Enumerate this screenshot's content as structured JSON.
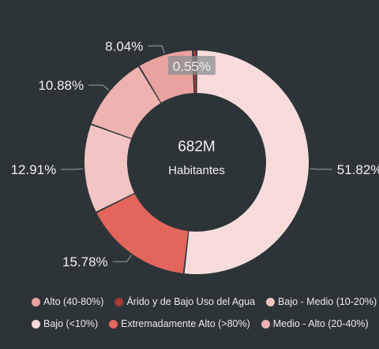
{
  "chart_data": {
    "type": "pie",
    "variant": "donut",
    "center_value": "682M",
    "center_label": "Habitantes",
    "slices": [
      {
        "name": "Bajo (<10%)",
        "value": 51.82,
        "label": "51.82%",
        "color": "#f8dcdb"
      },
      {
        "name": "Extremadamente Alto (>80%)",
        "value": 15.78,
        "label": "15.78%",
        "color": "#e3665d"
      },
      {
        "name": "Bajo - Medio (10-20%)",
        "value": 12.91,
        "label": "12.91%",
        "color": "#f2c4c3"
      },
      {
        "name": "Medio - Alto (20-40%)",
        "value": 10.88,
        "label": "10.88%",
        "color": "#eeb2b1"
      },
      {
        "name": "Alto (40-80%)",
        "value": 8.04,
        "label": "8.04%",
        "color": "#e9a29f"
      },
      {
        "name": "Árido y de Bajo Uso del Agua",
        "value": 0.55,
        "label": "0.55%",
        "color": "#a83a37"
      }
    ],
    "legend": [
      {
        "label": "Alto (40-80%)",
        "color": "#e9a29f"
      },
      {
        "label": "Árido y de Bajo Uso del Agua",
        "color": "#a83a37"
      },
      {
        "label": "Bajo - Medio (10-20%)",
        "color": "#f2c4c3"
      },
      {
        "label": "Bajo (<10%)",
        "color": "#f8dcdb"
      },
      {
        "label": "Extremadamente Alto (>80%)",
        "color": "#e3665d"
      },
      {
        "label": "Medio - Alto (20-40%)",
        "color": "#eeb2b1"
      }
    ],
    "legend_position": "bottom",
    "colors": {
      "background": "#2d3438",
      "text": "#eef0f0",
      "leader": "#9aa0a3"
    }
  }
}
